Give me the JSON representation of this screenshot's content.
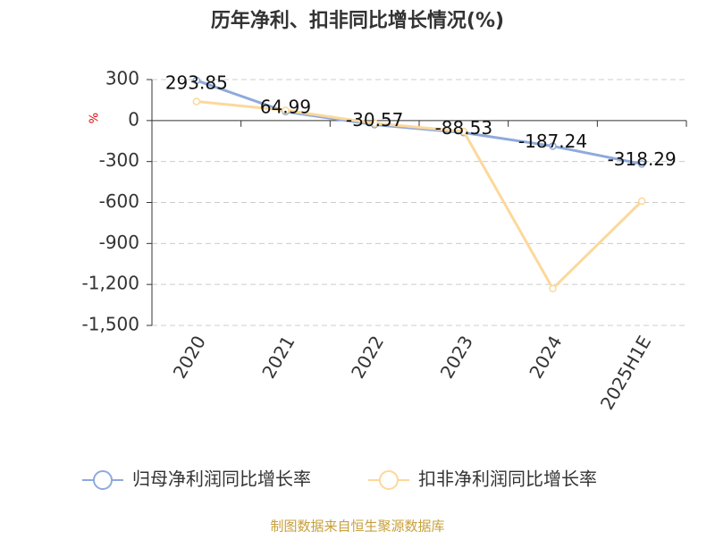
{
  "chart_data": {
    "type": "line",
    "title": "历年净利、扣非同比增长情况(%)",
    "y_label": "%",
    "categories": [
      "2020",
      "2021",
      "2022",
      "2023",
      "2024",
      "2025H1E"
    ],
    "series": [
      {
        "name": "归母净利润同比增长率",
        "color": "#8eaadc",
        "values": [
          293.85,
          64.99,
          -30.57,
          -88.53,
          -187.24,
          -318.29
        ],
        "show_labels": true
      },
      {
        "name": "扣非净利润同比增长率",
        "color": "#fcd89a",
        "values": [
          140,
          75,
          -20,
          -80,
          -1230,
          -590
        ],
        "show_labels": false
      }
    ],
    "ylim": [
      -1500,
      300
    ],
    "yticks": [
      300,
      0,
      -300,
      -600,
      -900,
      {
        "value": -1200,
        "label": "-1,200"
      },
      {
        "value": -1500,
        "label": "-1,500"
      }
    ],
    "grid": true,
    "legend": "bottom",
    "source": "制图数据来自恒生聚源数据库"
  }
}
